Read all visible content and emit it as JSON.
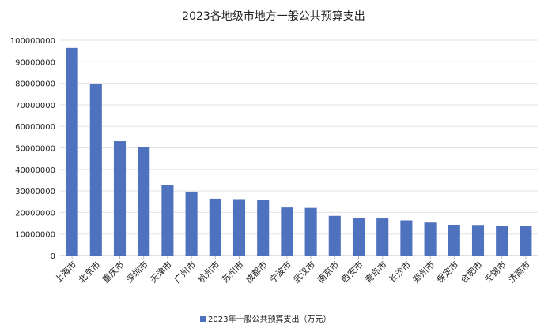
{
  "chart_data": {
    "type": "bar",
    "title": "2023各地级市地方一般公共预算支出",
    "categories": [
      "上海市",
      "北京市",
      "重庆市",
      "深圳市",
      "天津市",
      "广州市",
      "杭州市",
      "苏州市",
      "成都市",
      "宁波市",
      "武汉市",
      "南京市",
      "西安市",
      "青岛市",
      "长沙市",
      "郑州市",
      "保定市",
      "合肥市",
      "无锡市",
      "济南市"
    ],
    "series": [
      {
        "name": "2023年一般公共预算支出（万元）",
        "color": "#4f72be",
        "values": [
          96400000,
          79700000,
          53100000,
          50200000,
          32800000,
          29700000,
          26400000,
          26200000,
          25900000,
          22300000,
          22100000,
          18400000,
          17300000,
          17200000,
          16300000,
          15300000,
          14300000,
          14200000,
          13900000,
          13700000
        ]
      }
    ],
    "yticks": [
      "0",
      "10000000",
      "20000000",
      "30000000",
      "40000000",
      "50000000",
      "60000000",
      "70000000",
      "80000000",
      "90000000",
      "100000000"
    ],
    "ylim": [
      0,
      100000000
    ],
    "grid": true,
    "legend_position": "bottom"
  }
}
